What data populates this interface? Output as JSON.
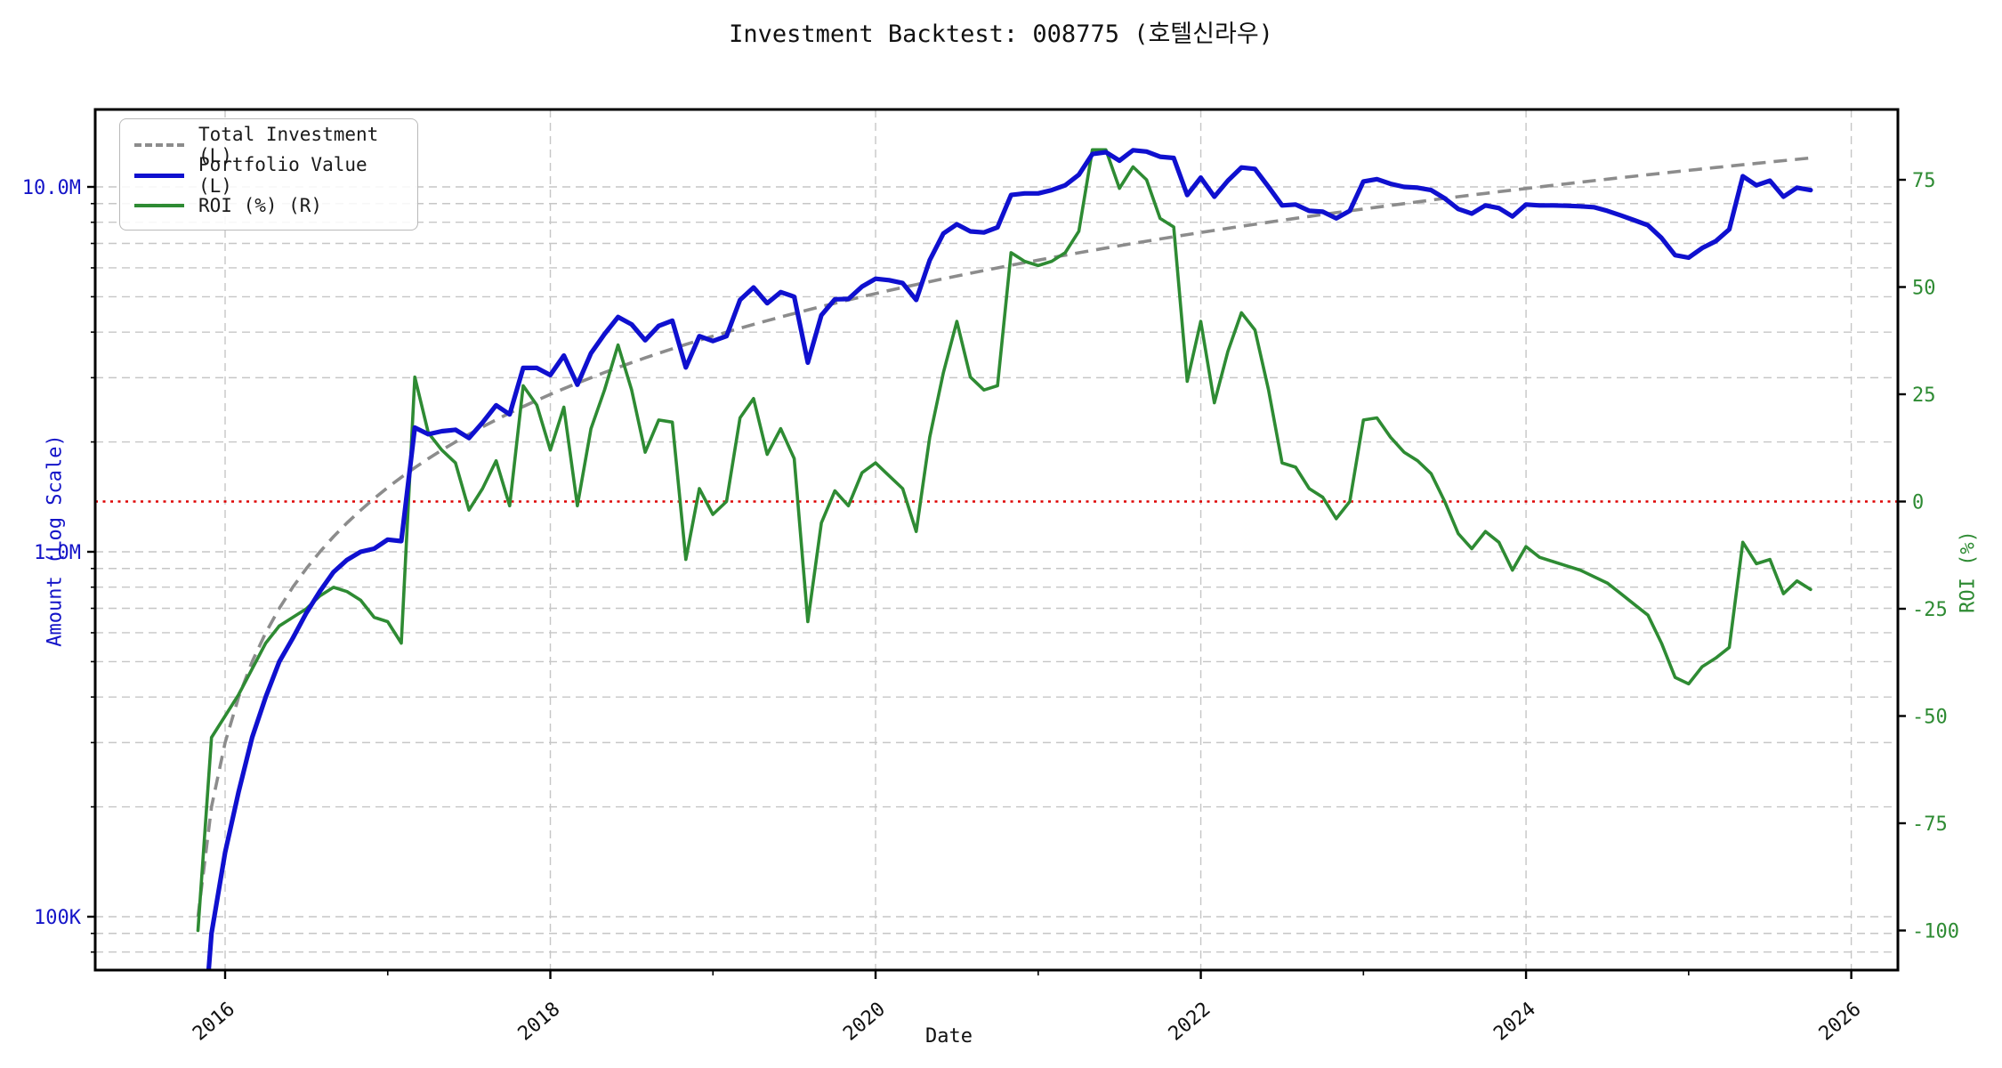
{
  "title": "Investment Backtest: 008775 (호텔신라우)",
  "legend": {
    "items": [
      {
        "label": "Total Investment (L)",
        "series": "investment",
        "style": "dashed-gray"
      },
      {
        "label": "Portfolio Value (L)",
        "series": "portfolio",
        "style": "solid-blue"
      },
      {
        "label": "ROI (%) (R)",
        "series": "roi",
        "style": "solid-green"
      }
    ]
  },
  "axes": {
    "x": {
      "label": "Date",
      "major_tick_labels": [
        "2016",
        "2018",
        "2020",
        "2022",
        "2024",
        "2026"
      ],
      "minor_tick_years": [
        2017,
        2019,
        2021,
        2023,
        2025
      ],
      "tick_label_rotation_deg": -40
    },
    "y_left": {
      "label": "Amount (Log Scale)",
      "scale": "log",
      "tick_labels": [
        "10.0M",
        "1.0M",
        "100K"
      ],
      "tick_values_m": [
        10,
        1,
        0.1
      ],
      "color": "#1414c8"
    },
    "y_right": {
      "label": "ROI (%)",
      "tick_values_pct": [
        75,
        50,
        25,
        0,
        -25,
        -50,
        -75,
        -100
      ],
      "color": "#2e8b33"
    },
    "zero_roi_line": {
      "value_pct": 0,
      "color": "#dd0000",
      "style": "dotted"
    }
  },
  "colors": {
    "investment": "#8c8c8c",
    "portfolio": "#0f10cf",
    "roi": "#2e8b33",
    "grid": "#c6c6c6",
    "frame": "#000000",
    "zero_line": "#dd0000",
    "background": "#ffffff"
  },
  "chart_data": {
    "type": "line",
    "title": "Investment Backtest: 008775 (호텔신라우)",
    "xlabel": "Date",
    "ylabel_left": "Amount (Log Scale)",
    "ylabel_right": "ROI (%)",
    "x_tick_years": [
      2016,
      2018,
      2020,
      2022,
      2024,
      2026
    ],
    "ylim_left_m": [
      0.0714,
      16.3
    ],
    "ylim_right_pct": [
      -109.2,
      91.4
    ],
    "grid": true,
    "legend_position": "upper-left",
    "dates": [
      "2015-11",
      "2015-12",
      "2016-01",
      "2016-02",
      "2016-03",
      "2016-04",
      "2016-05",
      "2016-06",
      "2016-07",
      "2016-08",
      "2016-09",
      "2016-10",
      "2016-11",
      "2016-12",
      "2017-01",
      "2017-02",
      "2017-03",
      "2017-04",
      "2017-05",
      "2017-06",
      "2017-07",
      "2017-08",
      "2017-09",
      "2017-10",
      "2017-11",
      "2017-12",
      "2018-01",
      "2018-02",
      "2018-03",
      "2018-04",
      "2018-05",
      "2018-06",
      "2018-07",
      "2018-08",
      "2018-09",
      "2018-10",
      "2018-11",
      "2018-12",
      "2019-01",
      "2019-02",
      "2019-03",
      "2019-04",
      "2019-05",
      "2019-06",
      "2019-07",
      "2019-08",
      "2019-09",
      "2019-10",
      "2019-11",
      "2019-12",
      "2020-01",
      "2020-02",
      "2020-03",
      "2020-04",
      "2020-05",
      "2020-06",
      "2020-07",
      "2020-08",
      "2020-09",
      "2020-10",
      "2020-11",
      "2020-12",
      "2021-01",
      "2021-02",
      "2021-03",
      "2021-04",
      "2021-05",
      "2021-06",
      "2021-07",
      "2021-08",
      "2021-09",
      "2021-10",
      "2021-11",
      "2021-12",
      "2022-01",
      "2022-02",
      "2022-03",
      "2022-04",
      "2022-05",
      "2022-06",
      "2022-07",
      "2022-08",
      "2022-09",
      "2022-10",
      "2022-11",
      "2022-12",
      "2023-01",
      "2023-02",
      "2023-03",
      "2023-04",
      "2023-05",
      "2023-06",
      "2023-07",
      "2023-08",
      "2023-09",
      "2023-10",
      "2023-11",
      "2023-12",
      "2024-01",
      "2024-02",
      "2024-03",
      "2024-04",
      "2024-05",
      "2024-06",
      "2024-07",
      "2024-08",
      "2024-09",
      "2024-10",
      "2024-11",
      "2024-12",
      "2025-01",
      "2025-02",
      "2025-03",
      "2025-04",
      "2025-05",
      "2025-06",
      "2025-07",
      "2025-08",
      "2025-09",
      "2025-10"
    ],
    "series": [
      {
        "name": "Total Investment (L)",
        "axis": "left",
        "unit": "million KRW",
        "style": "dashed",
        "values": [
          0.1,
          0.2,
          0.3,
          0.4,
          0.5,
          0.6,
          0.7,
          0.8,
          0.9,
          1.0,
          1.1,
          1.2,
          1.3,
          1.4,
          1.5,
          1.6,
          1.7,
          1.8,
          1.9,
          2.0,
          2.1,
          2.2,
          2.3,
          2.4,
          2.5,
          2.6,
          2.7,
          2.8,
          2.9,
          3.0,
          3.1,
          3.2,
          3.3,
          3.4,
          3.5,
          3.6,
          3.7,
          3.8,
          3.9,
          4.0,
          4.1,
          4.2,
          4.3,
          4.4,
          4.5,
          4.6,
          4.7,
          4.8,
          4.9,
          5.0,
          5.1,
          5.2,
          5.3,
          5.4,
          5.5,
          5.6,
          5.7,
          5.8,
          5.9,
          6.0,
          6.1,
          6.2,
          6.3,
          6.4,
          6.5,
          6.6,
          6.7,
          6.8,
          6.9,
          7.0,
          7.1,
          7.2,
          7.3,
          7.4,
          7.5,
          7.6,
          7.7,
          7.8,
          7.9,
          8.0,
          8.1,
          8.2,
          8.3,
          8.4,
          8.5,
          8.6,
          8.7,
          8.8,
          8.9,
          9.0,
          9.1,
          9.2,
          9.3,
          9.4,
          9.5,
          9.6,
          9.7,
          9.8,
          9.9,
          10.0,
          10.1,
          10.2,
          10.3,
          10.4,
          10.5,
          10.6,
          10.7,
          10.8,
          10.9,
          11.0,
          11.1,
          11.2,
          11.3,
          11.4,
          11.5,
          11.6,
          11.7,
          11.8,
          11.9,
          12.0
        ]
      },
      {
        "name": "Portfolio Value (L)",
        "axis": "left",
        "unit": "million KRW",
        "style": "solid",
        "values": [
          0.03,
          0.09,
          0.15,
          0.22,
          0.31,
          0.4,
          0.5,
          0.58,
          0.68,
          0.78,
          0.88,
          0.95,
          1.0,
          1.02,
          1.08,
          1.07,
          2.19,
          2.1,
          2.14,
          2.16,
          2.05,
          2.26,
          2.52,
          2.38,
          3.19,
          3.19,
          3.05,
          3.45,
          2.87,
          3.5,
          3.95,
          4.4,
          4.2,
          3.8,
          4.16,
          4.3,
          3.2,
          3.9,
          3.78,
          3.9,
          4.9,
          5.3,
          4.8,
          5.15,
          5.0,
          3.3,
          4.45,
          4.92,
          4.93,
          5.33,
          5.6,
          5.55,
          5.45,
          4.9,
          6.3,
          7.45,
          7.9,
          7.55,
          7.5,
          7.75,
          9.5,
          9.6,
          9.6,
          9.8,
          10.1,
          10.8,
          12.3,
          12.45,
          11.8,
          12.6,
          12.5,
          12.1,
          12.0,
          9.5,
          10.6,
          9.4,
          10.4,
          11.3,
          11.2,
          10.0,
          8.9,
          8.95,
          8.6,
          8.55,
          8.2,
          8.6,
          10.35,
          10.5,
          10.2,
          10.0,
          9.95,
          9.8,
          9.3,
          8.7,
          8.45,
          8.9,
          8.75,
          8.3,
          8.95,
          8.9,
          8.9,
          8.88,
          8.85,
          8.8,
          8.6,
          8.35,
          8.1,
          7.85,
          7.25,
          6.5,
          6.4,
          6.8,
          7.1,
          7.65,
          10.7,
          10.1,
          10.4,
          9.4,
          9.95,
          9.8
        ]
      },
      {
        "name": "ROI (%) (R)",
        "axis": "right",
        "unit": "%",
        "style": "solid",
        "values": [
          -100,
          -55,
          -50,
          -45,
          -39,
          -33,
          -29,
          -27,
          -25,
          -22,
          -20,
          -21,
          -23,
          -27,
          -28,
          -33,
          29,
          16,
          12,
          9,
          -2,
          3,
          9.5,
          -1,
          27,
          22.5,
          12,
          22,
          -1,
          17,
          26,
          36.5,
          26,
          11.5,
          19,
          18.5,
          -13.5,
          3,
          -3,
          0,
          19.5,
          24,
          11,
          17,
          10,
          -28,
          -5,
          2.5,
          -1,
          6.7,
          9,
          6,
          3,
          -7,
          15,
          30,
          42,
          29,
          26,
          27,
          58,
          56,
          55,
          56,
          58,
          63,
          82,
          82,
          73,
          78,
          75,
          66,
          64,
          28,
          42,
          23,
          35,
          44,
          40,
          26,
          9,
          8,
          3,
          1,
          -4,
          0,
          19,
          19.5,
          15,
          11.5,
          9.5,
          6.5,
          0,
          -7.5,
          -11,
          -7,
          -9.5,
          -16,
          -10.5,
          -13,
          -14,
          -15,
          -16,
          -17.5,
          -19,
          -21.5,
          -24,
          -26.5,
          -33,
          -41,
          -42.5,
          -38.5,
          -36.5,
          -34,
          -9.5,
          -14.5,
          -13.5,
          -21.5,
          -18.5,
          -20.5
        ]
      }
    ]
  }
}
